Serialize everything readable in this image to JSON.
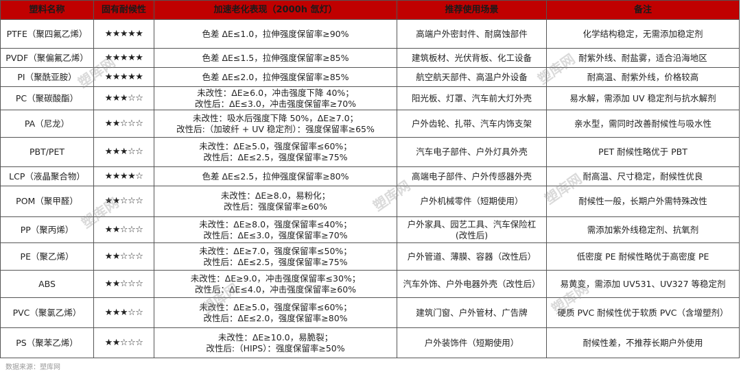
{
  "table": {
    "headers": [
      "塑料名称",
      "固有耐候性",
      "加速老化表现（2000h 氙灯）",
      "推荐使用场景",
      "备注"
    ],
    "rows": [
      {
        "name": "PTFE（聚四氟乙烯）",
        "stars": "★★★★★",
        "aging": [
          "色差 ΔE≤1.0，拉伸强度保留率≥90%"
        ],
        "usage": [
          "高端户外密封件、耐腐蚀部件"
        ],
        "note": "化学结构稳定，无需添加稳定剂"
      },
      {
        "name": "PVDF（聚偏氟乙烯）",
        "stars": "★★★★★",
        "aging": [
          "色差 ΔE≤1.5，拉伸强度保留率≥85%"
        ],
        "usage": [
          "建筑板材、光伏背板、化工设备"
        ],
        "note": "耐紫外线、耐盐雾，适合沿海地区"
      },
      {
        "name": "PI（聚酰亚胺）",
        "stars": "★★★★★",
        "aging": [
          "色差 ΔE≤2.0，拉伸强度保留率≥85%"
        ],
        "usage": [
          "航空航天部件、高温户外设备"
        ],
        "note": "耐高温、耐紫外线，价格较高"
      },
      {
        "name": "PC（聚碳酸酯）",
        "stars": "★★★☆☆",
        "aging": [
          "未改性：ΔE≥6.0，冲击强度下降 40%；",
          "改性后：ΔE≤3.0，冲击强度保留率≥70%"
        ],
        "usage": [
          "阳光板、灯罩、汽车前大灯外壳"
        ],
        "note": "易水解，需添加 UV 稳定剂与抗水解剂"
      },
      {
        "name": "PA（尼龙）",
        "stars": "★★☆☆☆",
        "aging": [
          "未改性：吸水后强度下降 50%，ΔE≥7.0；",
          "改性后:（加玻纤 + UV 稳定剂）：强度保留率≥65%"
        ],
        "usage": [
          "户外齿轮、扎带、汽车内饰支架"
        ],
        "note": "亲水型，需同时改善耐候性与吸水性"
      },
      {
        "name": "PBT/PET",
        "stars": "★★★☆☆",
        "aging": [
          "未改性：ΔE≥5.0，强度保留率≤60%；",
          "改性后：ΔE≤2.5，强度保留率≥75%"
        ],
        "usage": [
          "汽车电子部件、户外灯具外壳"
        ],
        "note": "PET 耐候性略优于 PBT"
      },
      {
        "name": "LCP（液晶聚合物）",
        "stars": "★★★★☆",
        "aging": [
          "色差 ΔE≤2.5，拉伸强度保留率≥80%"
        ],
        "usage": [
          "高端电子部件、户外传感器外壳"
        ],
        "note": "耐高温、尺寸稳定，耐候性优良"
      },
      {
        "name": "POM（聚甲醛）",
        "stars": "★★☆☆☆",
        "aging": [
          "未改性：ΔE≥8.0，易粉化；",
          "改性后：强度保留率≥60%"
        ],
        "usage": [
          "户外机械零件（短期使用）"
        ],
        "note": "耐候性一般，长期户外需特殊改性"
      },
      {
        "name": "PP（聚丙烯）",
        "stars": "★★☆☆☆",
        "aging": [
          "未改性：ΔE≥8.0，强度保留率≤40%；",
          "改性后：ΔE≤3.0，强度保留率≥70%"
        ],
        "usage": [
          "户外家具、园艺工具、汽车保险杠",
          "(改性后)"
        ],
        "note": "需添加紫外线稳定剂、抗氧剂"
      },
      {
        "name": "PE（聚乙烯）",
        "stars": "★★☆☆☆",
        "aging": [
          "未改性：ΔE≥7.0，强度保留率≤50%；",
          "改性后：ΔE≤2.5，强度保留率≥75%"
        ],
        "usage": [
          "户外管道、薄膜、容器（改性后）"
        ],
        "note": "低密度 PE 耐候性略优于高密度 PE"
      },
      {
        "name": "ABS",
        "stars": "★★☆☆☆",
        "aging": [
          "未改性：ΔE≥9.0，冲击强度保留率≤30%；",
          "改性后：ΔE≤4.0，冲击强度保留率≥60%"
        ],
        "usage": [
          "汽车外饰、户外电器外壳（改性后）"
        ],
        "note": "易黄变，需添加 UV531、UV327 等稳定剂"
      },
      {
        "name": "PVC（聚氯乙烯）",
        "stars": "★★★☆☆",
        "aging": [
          "未改性：ΔE≥5.0，强度保留率≤60%；",
          "改性后：ΔE≤2.0，强度保留率≥80%"
        ],
        "usage": [
          "建筑门窗、户外管材、广告牌"
        ],
        "note": "硬质 PVC 耐候性优于软质 PVC（含增塑剂）"
      },
      {
        "name": "PS（聚苯乙烯）",
        "stars": "★★☆☆☆",
        "aging": [
          "未改性：ΔE≥10.0，易脆裂；",
          "改性后:（HIPS）：强度保留率≥50%"
        ],
        "usage": [
          "户外装饰件（短期使用）"
        ],
        "note": "耐候性差，不推荐长期户外使用"
      }
    ]
  },
  "watermark": "塑库网",
  "footnote": "数据来源：塑库网",
  "colors": {
    "header_bg": "#c00000",
    "border": "#555555"
  }
}
